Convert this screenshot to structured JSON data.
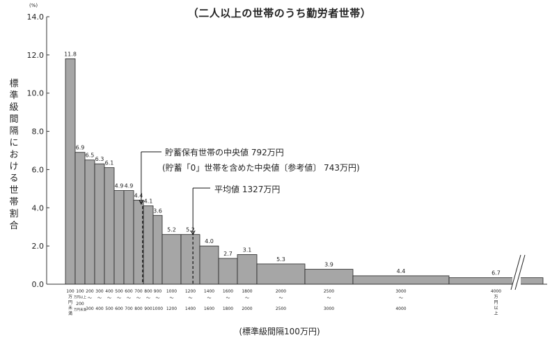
{
  "chart_data": {
    "type": "bar",
    "title": "（二人以上の世帯のうち勤労者世帯）",
    "ylabel": "標準級間隔における世帯割合",
    "yunit": "(%)",
    "xlabel": "(標準級間隔100万円)",
    "ylim": [
      0,
      14
    ],
    "yticks": [
      "0.0",
      "2.0",
      "4.0",
      "6.0",
      "8.0",
      "10.0",
      "12.0",
      "14.0"
    ],
    "bins": [
      {
        "from": 0,
        "to": 100,
        "value": 11.8,
        "label": "11.8"
      },
      {
        "from": 100,
        "to": 200,
        "value": 6.9,
        "label": "6.9"
      },
      {
        "from": 200,
        "to": 300,
        "value": 6.5,
        "label": "6.5"
      },
      {
        "from": 300,
        "to": 400,
        "value": 6.3,
        "label": "6.3"
      },
      {
        "from": 400,
        "to": 500,
        "value": 6.1,
        "label": "6.1"
      },
      {
        "from": 500,
        "to": 600,
        "value": 4.9,
        "label": "4.9"
      },
      {
        "from": 600,
        "to": 700,
        "value": 4.9,
        "label": "4.9"
      },
      {
        "from": 700,
        "to": 800,
        "value": 4.4,
        "label": "4.4"
      },
      {
        "from": 800,
        "to": 900,
        "value": 4.1,
        "label": "4.1"
      },
      {
        "from": 900,
        "to": 1000,
        "value": 3.6,
        "label": "3.6"
      },
      {
        "from": 1000,
        "to": 1200,
        "value": 2.6,
        "label": "5.2"
      },
      {
        "from": 1200,
        "to": 1400,
        "value": 2.6,
        "label": "5.2"
      },
      {
        "from": 1400,
        "to": 1600,
        "value": 2.0,
        "label": "4.0"
      },
      {
        "from": 1600,
        "to": 1800,
        "value": 1.35,
        "label": "2.7"
      },
      {
        "from": 1800,
        "to": 2000,
        "value": 1.55,
        "label": "3.1"
      },
      {
        "from": 2000,
        "to": 2500,
        "value": 1.06,
        "label": "5.3"
      },
      {
        "from": 2500,
        "to": 3000,
        "value": 0.78,
        "label": "3.9"
      },
      {
        "from": 3000,
        "to": 4000,
        "value": 0.44,
        "label": "4.4"
      },
      {
        "from": 4000,
        "to": null,
        "value": 0.34,
        "label": "6.7"
      }
    ],
    "xtick_labels": [
      [
        "100",
        "万",
        "円",
        "未",
        "満"
      ],
      [
        "100",
        "万円以上",
        "200",
        "万円未満"
      ],
      [
        "200",
        "〜",
        "300"
      ],
      [
        "300",
        "〜",
        "400"
      ],
      [
        "400",
        "〜",
        "500"
      ],
      [
        "500",
        "〜",
        "600"
      ],
      [
        "600",
        "〜",
        "700"
      ],
      [
        "700",
        "〜",
        "800"
      ],
      [
        "800",
        "〜",
        "900"
      ],
      [
        "900",
        "〜",
        "1000"
      ],
      [
        "1000",
        "〜",
        "1200"
      ],
      [
        "1200",
        "〜",
        "1400"
      ],
      [
        "1400",
        "〜",
        "1600"
      ],
      [
        "1600",
        "〜",
        "1800"
      ],
      [
        "1800",
        "〜",
        "2000"
      ],
      [
        "2000",
        "〜",
        "2500"
      ],
      [
        "2500",
        "〜",
        "3000"
      ],
      [
        "3000",
        "〜",
        "4000"
      ],
      [
        "4000",
        "万",
        "円",
        "以",
        "上"
      ]
    ],
    "annotations": [
      {
        "text": "貯蓄保有世帯の中央値 792万円",
        "at": 792
      },
      {
        "text": "(貯蓄「0」世帯を含めた中央値〔参考値〕 743万円)",
        "at": 743
      },
      {
        "text": "平均値 1327万円",
        "at": 1327
      }
    ],
    "grid": false,
    "bar_color": "#a6a6a6"
  }
}
